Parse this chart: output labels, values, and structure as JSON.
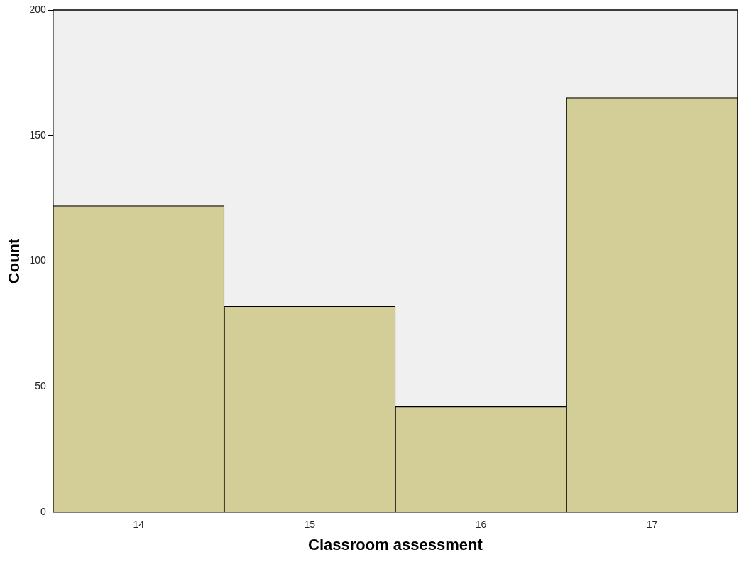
{
  "chart_data": {
    "type": "bar",
    "xlabel": "Classroom assessment",
    "ylabel": "Count",
    "categories": [
      "14",
      "15",
      "16",
      "17"
    ],
    "values": [
      122,
      82,
      42,
      165
    ],
    "color": "#d3ce97",
    "ylim": [
      0,
      200
    ],
    "yticks": [
      0,
      50,
      100,
      150,
      200
    ],
    "grid": false,
    "legend": false
  }
}
